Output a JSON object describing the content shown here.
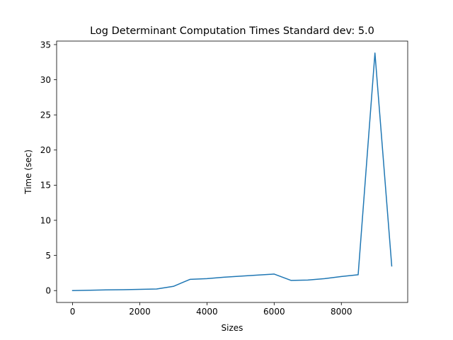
{
  "chart_data": {
    "type": "line",
    "title": "Log Determinant Computation Times Standard dev: 5.0",
    "xlabel": "Sizes",
    "ylabel": "Time (sec)",
    "xlim": [
      -475,
      9975
    ],
    "ylim": [
      -1.69,
      35.5
    ],
    "x_ticks": [
      0,
      2000,
      4000,
      6000,
      8000
    ],
    "y_ticks": [
      0,
      5,
      10,
      15,
      20,
      25,
      30,
      35
    ],
    "grid": false,
    "legend": "none",
    "series": [
      {
        "color": "#1f77b4",
        "x": [
          0,
          500,
          1000,
          1500,
          2000,
          2500,
          3000,
          3500,
          4000,
          4500,
          5000,
          5500,
          6000,
          6500,
          7000,
          7500,
          8000,
          8500,
          9000,
          9500
        ],
        "y": [
          0.0,
          0.05,
          0.1,
          0.12,
          0.18,
          0.22,
          0.6,
          1.6,
          1.7,
          1.9,
          2.05,
          2.2,
          2.35,
          1.45,
          1.5,
          1.7,
          2.0,
          2.25,
          33.8,
          3.5
        ]
      }
    ]
  }
}
